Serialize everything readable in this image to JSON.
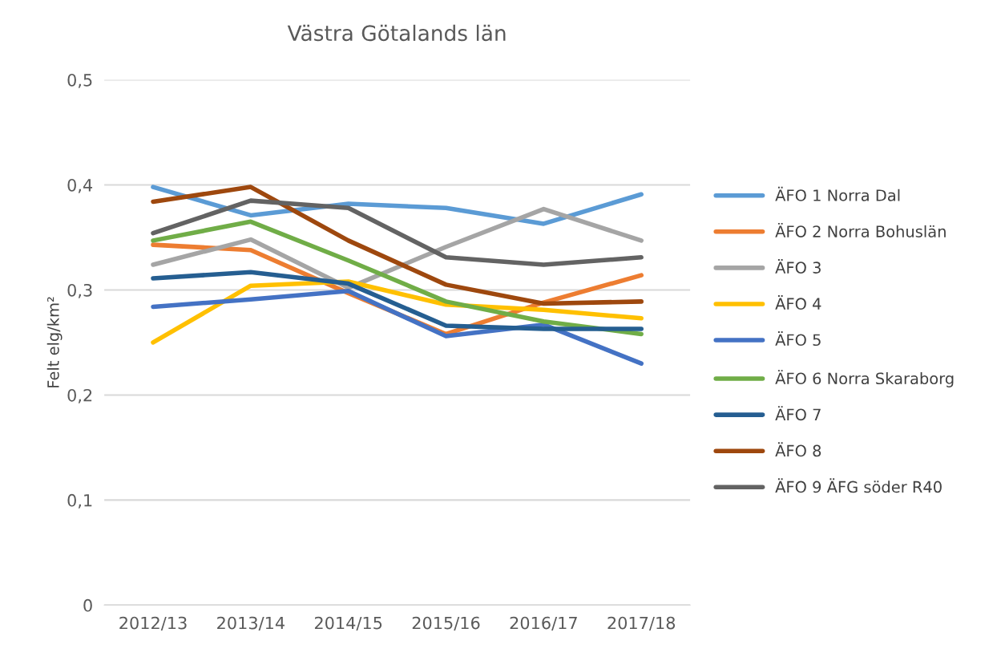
{
  "chart_data": {
    "type": "line",
    "title": "Västra Götalands län",
    "ylabel": "Felt elg/km²",
    "categories": [
      "2012/13",
      "2013/14",
      "2014/15",
      "2015/16",
      "2016/17",
      "2017/18"
    ],
    "series": [
      {
        "name": "ÄFO 1 Norra Dal",
        "color": "#5b9bd5",
        "values": [
          0.398,
          0.371,
          0.382,
          0.378,
          0.363,
          0.391
        ]
      },
      {
        "name": "ÄFO 2 Norra Bohuslän",
        "color": "#ed7d31",
        "values": [
          0.343,
          0.338,
          0.297,
          0.258,
          0.288,
          0.314
        ]
      },
      {
        "name": "ÄFO 3",
        "color": "#a5a5a5",
        "values": [
          0.324,
          0.348,
          0.302,
          0.341,
          0.377,
          0.347
        ]
      },
      {
        "name": "ÄFO 4",
        "color": "#ffc000",
        "values": [
          0.25,
          0.304,
          0.308,
          0.286,
          0.281,
          0.273
        ]
      },
      {
        "name": "ÄFO 5",
        "color": "#4472c4",
        "values": [
          0.284,
          0.291,
          0.299,
          0.256,
          0.267,
          0.23
        ]
      },
      {
        "name": "ÄFO 6 Norra Skaraborg",
        "color": "#70ad47",
        "values": [
          0.347,
          0.365,
          0.328,
          0.289,
          0.27,
          0.258
        ]
      },
      {
        "name": "ÄFO 7",
        "color": "#255e91",
        "values": [
          0.311,
          0.317,
          0.306,
          0.266,
          0.263,
          0.263
        ]
      },
      {
        "name": "ÄFO 8",
        "color": "#9e480e",
        "values": [
          0.384,
          0.398,
          0.347,
          0.305,
          0.287,
          0.289
        ]
      },
      {
        "name": "ÄFO 9 ÄFG söder R40",
        "color": "#636363",
        "values": [
          0.354,
          0.385,
          0.378,
          0.331,
          0.324,
          0.331
        ]
      }
    ],
    "ylim": [
      0,
      0.5
    ],
    "yticks": [
      {
        "value": 0,
        "label": "0"
      },
      {
        "value": 0.1,
        "label": "0,1"
      },
      {
        "value": 0.2,
        "label": "0,2"
      },
      {
        "value": 0.3,
        "label": "0,3"
      },
      {
        "value": 0.4,
        "label": "0,4"
      },
      {
        "value": 0.5,
        "label": "0,5"
      }
    ],
    "grid": "y",
    "legend": "right",
    "marker": "none",
    "line_style": "solid"
  }
}
